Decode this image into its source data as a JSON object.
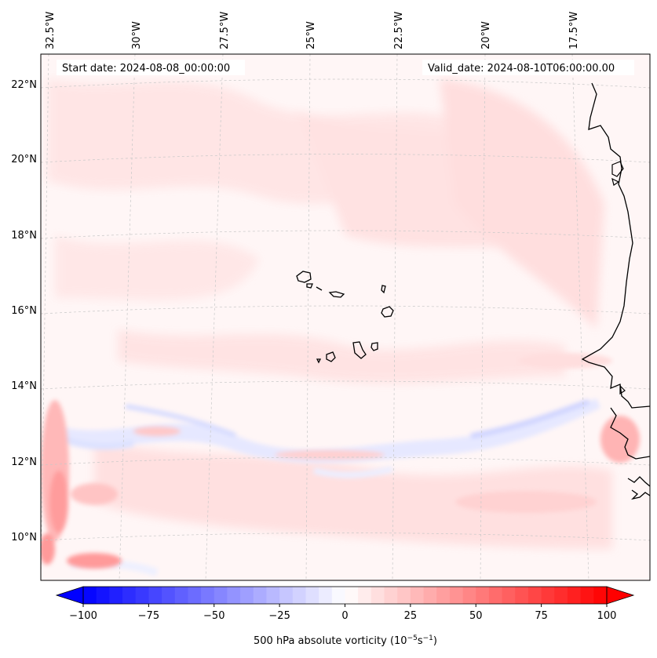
{
  "map": {
    "start_date_label": "Start date: 2024-08-08_00:00:00",
    "valid_date_label": "Valid_date: 2024-08-10T06:00:00.00",
    "field": "500 hPa absolute vorticity",
    "units_prefix": "500 hPa absolute vorticity (10",
    "units_exp1": "−5",
    "units_mid": "s",
    "units_exp2": "−1",
    "units_suffix": ")",
    "lon_labels": [
      "32.5°W",
      "30°W",
      "27.5°W",
      "25°W",
      "22.5°W",
      "20°W",
      "17.5°W"
    ],
    "lat_labels": [
      "22°N",
      "20°N",
      "18°N",
      "16°N",
      "14°N",
      "12°N",
      "10°N"
    ],
    "islands": "Cabo Verde"
  },
  "colorbar": {
    "ticks": [
      "−100",
      "−75",
      "−50",
      "−25",
      "0",
      "25",
      "50",
      "75",
      "100"
    ],
    "min": -100,
    "max": 100,
    "step": 5,
    "colors": {
      "negative_end": "#0000ff",
      "positive_end": "#ff0000",
      "center": "#ffffff"
    }
  }
}
